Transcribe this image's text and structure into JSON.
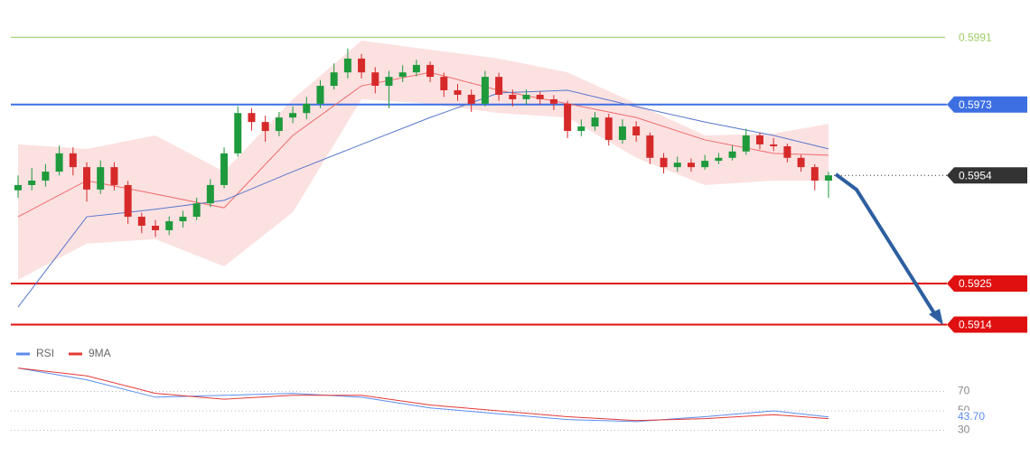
{
  "chart_data": [
    {
      "type": "candlestick",
      "ylim": [
        0.591,
        0.6001
      ],
      "xlim": [
        0,
        59
      ],
      "up_color": "#1e9a3c",
      "down_color": "#d62a2a",
      "candles": [
        [
          0.595,
          0.5954,
          0.5948,
          0.59514
        ],
        [
          0.59514,
          0.5956,
          0.595,
          0.59526
        ],
        [
          0.59526,
          0.5957,
          0.5951,
          0.5955
        ],
        [
          0.5955,
          0.5962,
          0.5954,
          0.59599
        ],
        [
          0.59599,
          0.59615,
          0.5954,
          0.59562
        ],
        [
          0.59562,
          0.59575,
          0.5947,
          0.59502
        ],
        [
          0.59502,
          0.5958,
          0.5949,
          0.59562
        ],
        [
          0.59562,
          0.59575,
          0.595,
          0.59514
        ],
        [
          0.59514,
          0.59525,
          0.5941,
          0.59429
        ],
        [
          0.59429,
          0.5944,
          0.59385,
          0.59405
        ],
        [
          0.59405,
          0.5942,
          0.59375,
          0.59393
        ],
        [
          0.59393,
          0.5943,
          0.5938,
          0.59417
        ],
        [
          0.59417,
          0.59445,
          0.594,
          0.59429
        ],
        [
          0.59429,
          0.5948,
          0.5942,
          0.59465
        ],
        [
          0.59465,
          0.5953,
          0.59455,
          0.59514
        ],
        [
          0.59514,
          0.59615,
          0.59505,
          0.59599
        ],
        [
          0.59599,
          0.59725,
          0.5959,
          0.59707
        ],
        [
          0.59707,
          0.5972,
          0.5966,
          0.59683
        ],
        [
          0.59683,
          0.597,
          0.5963,
          0.59659
        ],
        [
          0.59659,
          0.5971,
          0.59645,
          0.59695
        ],
        [
          0.59695,
          0.59725,
          0.5968,
          0.59707
        ],
        [
          0.59707,
          0.5975,
          0.5969,
          0.59732
        ],
        [
          0.59732,
          0.59795,
          0.5972,
          0.5978
        ],
        [
          0.5978,
          0.5984,
          0.5977,
          0.59816
        ],
        [
          0.59816,
          0.5988,
          0.598,
          0.59853
        ],
        [
          0.59853,
          0.59865,
          0.598,
          0.59816
        ],
        [
          0.59816,
          0.5983,
          0.5976,
          0.5978
        ],
        [
          0.5978,
          0.5982,
          0.5972,
          0.59804
        ],
        [
          0.59804,
          0.59835,
          0.5979,
          0.59816
        ],
        [
          0.59816,
          0.5985,
          0.59805,
          0.59836
        ],
        [
          0.59836,
          0.59845,
          0.5979,
          0.59804
        ],
        [
          0.59804,
          0.59815,
          0.5975,
          0.59768
        ],
        [
          0.59768,
          0.59785,
          0.5974,
          0.59756
        ],
        [
          0.59756,
          0.5977,
          0.5971,
          0.59732
        ],
        [
          0.59732,
          0.5982,
          0.59725,
          0.59804
        ],
        [
          0.59804,
          0.59815,
          0.5974,
          0.59756
        ],
        [
          0.59756,
          0.5977,
          0.59725,
          0.59744
        ],
        [
          0.59744,
          0.5977,
          0.5973,
          0.59756
        ],
        [
          0.59756,
          0.59765,
          0.5973,
          0.59744
        ],
        [
          0.59744,
          0.59755,
          0.59715,
          0.59732
        ],
        [
          0.59732,
          0.5974,
          0.5964,
          0.59659
        ],
        [
          0.59659,
          0.5969,
          0.59645,
          0.59671
        ],
        [
          0.59671,
          0.5971,
          0.5966,
          0.59695
        ],
        [
          0.59695,
          0.59705,
          0.5962,
          0.59635
        ],
        [
          0.59635,
          0.5969,
          0.59625,
          0.59671
        ],
        [
          0.59671,
          0.59685,
          0.5963,
          0.59647
        ],
        [
          0.59647,
          0.59655,
          0.5957,
          0.59587
        ],
        [
          0.59587,
          0.596,
          0.59545,
          0.59562
        ],
        [
          0.59562,
          0.5959,
          0.5955,
          0.59574
        ],
        [
          0.59574,
          0.59585,
          0.5955,
          0.59562
        ],
        [
          0.59562,
          0.59595,
          0.59555,
          0.59579
        ],
        [
          0.59579,
          0.596,
          0.5957,
          0.59587
        ],
        [
          0.59587,
          0.5962,
          0.5958,
          0.59604
        ],
        [
          0.59604,
          0.59665,
          0.59595,
          0.59647
        ],
        [
          0.59647,
          0.59655,
          0.5961,
          0.59623
        ],
        [
          0.59623,
          0.5964,
          0.59605,
          0.59618
        ],
        [
          0.59618,
          0.59625,
          0.59575,
          0.59587
        ],
        [
          0.59587,
          0.59595,
          0.5955,
          0.59562
        ],
        [
          0.59562,
          0.5957,
          0.595,
          0.59526
        ],
        [
          0.59526,
          0.5955,
          0.5948,
          0.5954
        ]
      ],
      "overlay": {
        "index": [
          0,
          5,
          10,
          15,
          20,
          25,
          30,
          35,
          40,
          45,
          50,
          55,
          59
        ],
        "band_color": "#fbdada",
        "middle_color": "#ef6b6b",
        "slow_color": "#5577cc",
        "upper": [
          0.59623,
          0.59611,
          0.59647,
          0.5955,
          0.59744,
          0.59901,
          0.59877,
          0.59853,
          0.59816,
          0.59732,
          0.59647,
          0.59652,
          0.59678
        ],
        "lower": [
          0.5926,
          0.59357,
          0.59369,
          0.59296,
          0.59441,
          0.59744,
          0.59732,
          0.59707,
          0.59695,
          0.59587,
          0.59514,
          0.59526,
          0.59526
        ],
        "middle": [
          0.59429,
          0.59526,
          0.5949,
          0.59453,
          0.59647,
          0.5978,
          0.59816,
          0.59768,
          0.59732,
          0.59695,
          0.59635,
          0.59599,
          0.59594
        ],
        "slow_ma": [
          0.59187,
          0.59429,
          0.59449,
          0.59473,
          0.5955,
          0.59623,
          0.59695,
          0.59761,
          0.59768,
          0.59724,
          0.59683,
          0.59647,
          0.59611
        ]
      },
      "levels": [
        {
          "value": 0.5991,
          "color": "#9ccc65",
          "boxed": false
        },
        {
          "value": 0.5973,
          "color": "#3d6fe3",
          "boxed": true
        },
        {
          "value": 0.5925,
          "color": "#e01010",
          "boxed": true
        },
        {
          "value": 0.5914,
          "color": "#e01010",
          "boxed": true
        }
      ],
      "current_color": "#333333"
    },
    {
      "type": "line",
      "ylim": [
        10,
        95
      ],
      "xlim": [
        0,
        59
      ],
      "yticks": [
        70,
        50,
        30
      ],
      "grid": true,
      "x": [
        0,
        5,
        10,
        15,
        20,
        25,
        30,
        35,
        40,
        45,
        50,
        55,
        59
      ],
      "series": [
        {
          "name": "RSI",
          "color": "#5b8def",
          "values": [
            94,
            82,
            64,
            66,
            68,
            64,
            53,
            47,
            41,
            39,
            44,
            50,
            43.7
          ],
          "current_label": "43.70"
        },
        {
          "name": "9MA",
          "color": "#e53935",
          "values": [
            94,
            86,
            68,
            62,
            66,
            66,
            56,
            50,
            44,
            40,
            42,
            46,
            42
          ]
        }
      ]
    }
  ]
}
